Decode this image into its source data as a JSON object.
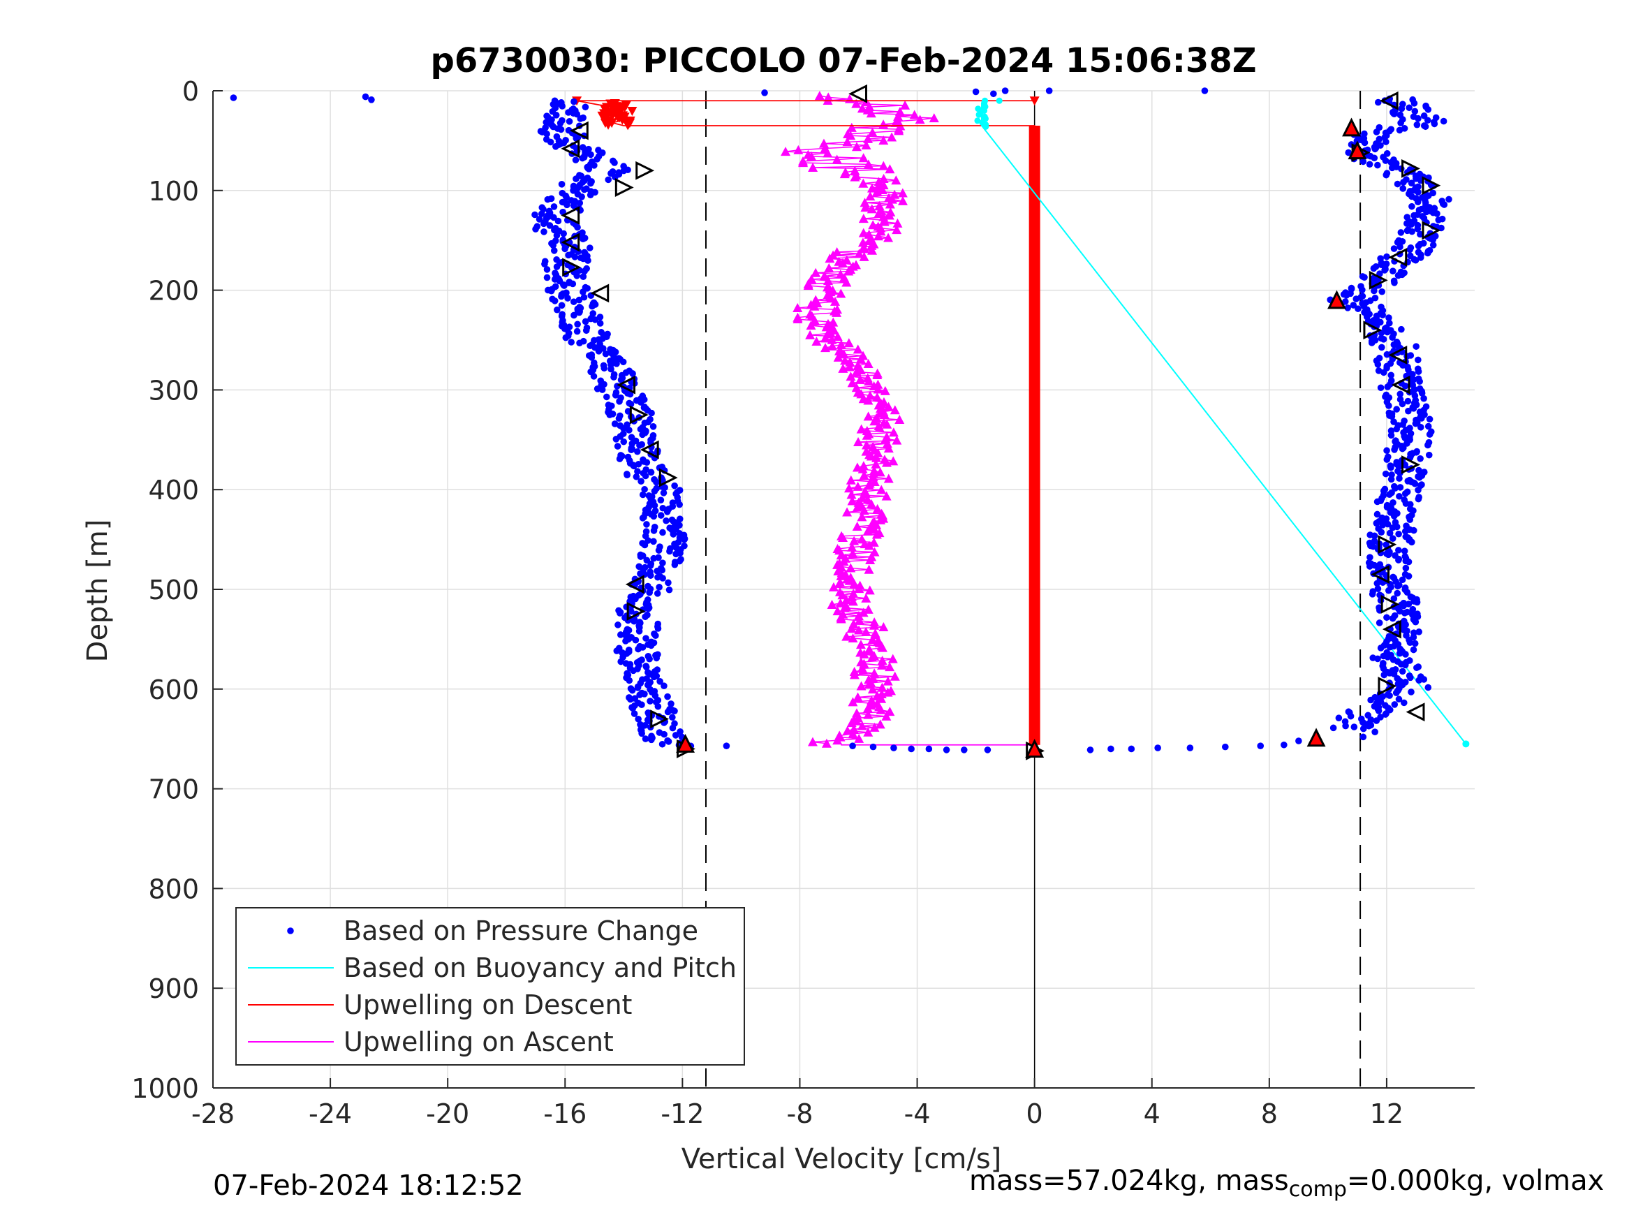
{
  "chart_data": {
    "type": "scatter",
    "title": "p6730030: PICCOLO 07-Feb-2024 15:06:38Z",
    "xlabel": "Vertical Velocity [cm/s]",
    "ylabel": "Depth [m]",
    "xlim": [
      -28,
      15
    ],
    "ylim": [
      0,
      1000
    ],
    "y_reversed": true,
    "xticks": [
      -28,
      -24,
      -20,
      -16,
      -12,
      -8,
      -4,
      0,
      4,
      8,
      12
    ],
    "yticks": [
      0,
      100,
      200,
      300,
      400,
      500,
      600,
      700,
      800,
      900,
      1000
    ],
    "grid": true,
    "legend_position": "bottom-left",
    "reference_lines_x": [
      -11.2,
      11.1
    ],
    "colors": {
      "pressure": "#0000ff",
      "buoyancy": "#00ffff",
      "descent": "#ff0000",
      "ascent": "#ff00ff",
      "axis": "#262626",
      "grid": "#dfdfdf"
    },
    "series": [
      {
        "name": "Based on Pressure Change",
        "style": "dots",
        "branches": [
          {
            "x": [
              -15.8,
              -16.2,
              -15.5,
              -14.5,
              -15.5,
              -16.5,
              -15.8,
              -16,
              -15.8,
              -15.2,
              -14.3,
              -13.7,
              -13.5,
              -13.3,
              -12.7,
              -12.6,
              -12.7,
              -13.1,
              -13.5,
              -13.6,
              -13.5,
              -13.3,
              -12.9,
              -12.7,
              -12.8,
              -12.2
            ],
            "y": [
              10,
              40,
              60,
              80,
              95,
              130,
              155,
              175,
              205,
              250,
              290,
              330,
              360,
              385,
              400,
              440,
              470,
              500,
              520,
              545,
              575,
              600,
              630,
              645,
              650,
              658
            ]
          },
          {
            "x": [
              12.3,
              12.8,
              13.3,
              11.5,
              11.2,
              12.2,
              13.2,
              13.5,
              13.4,
              12.6,
              11.7,
              10.8,
              11.6,
              12.4,
              12.4,
              12.8,
              12.7,
              12.3,
              12.1,
              12.2,
              12.5,
              12.2,
              12.8,
              11.5,
              10.6
            ],
            "y": [
              8,
              20,
              30,
              45,
              60,
              80,
              95,
              110,
              135,
              165,
              190,
              210,
              230,
              260,
              290,
              330,
              375,
              420,
              460,
              500,
              540,
              570,
              600,
              620,
              640
            ]
          }
        ],
        "scattered": {
          "x": [
            -27.3,
            -22.8,
            -22.6,
            -9.2,
            -2,
            -1.4,
            -1,
            0.5,
            5.8,
            -6.2,
            -5.5,
            -4.8,
            -4.2,
            -3.6,
            -3.0,
            -2.4,
            -1.6,
            1.9,
            2.6,
            3.3,
            4.2,
            5.3,
            6.5,
            7.7,
            8.5,
            9.0,
            11.2,
            11.6,
            10.6,
            -10.5
          ],
          "y": [
            7,
            6,
            9,
            2,
            1,
            3,
            0,
            0,
            0,
            657,
            658,
            659,
            660,
            660,
            661,
            661,
            661,
            661,
            660,
            660,
            659,
            659,
            658,
            657,
            656,
            652,
            648,
            643,
            637,
            657
          ]
        }
      },
      {
        "name": "Based on Buoyancy and Pitch",
        "style": "line",
        "x": [
          -1.8,
          -1.8,
          -1.8,
          14.7
        ],
        "y": [
          12,
          25,
          35,
          655
        ]
      },
      {
        "name": "Upwelling on Descent",
        "style": "line+markers",
        "x": [
          -15.6,
          -14.5,
          -14.2,
          -14.0,
          -14.3,
          -14.1,
          -14.4,
          -14.0,
          0,
          0,
          0,
          0,
          0
        ],
        "y": [
          10,
          16,
          22,
          25,
          28,
          30,
          32,
          35,
          35,
          100,
          300,
          500,
          656
        ]
      },
      {
        "name": "Upwelling on Ascent",
        "style": "line+markers",
        "x": [
          -6.3,
          -5.2,
          -4.5,
          -5.4,
          -7.5,
          -6.4,
          -5.0,
          -5.2,
          -5.3,
          -6.8,
          -7.2,
          -7.5,
          -6.6,
          -5.6,
          -5.3,
          -5.4,
          -5.6,
          -5.7,
          -6.0,
          -6.1,
          -6.3,
          -5.8,
          -5.5,
          -5.4,
          -5.6,
          -5.7,
          -6.0,
          -6.5,
          -7.2
        ],
        "y": [
          5,
          15,
          25,
          45,
          60,
          75,
          95,
          115,
          140,
          180,
          200,
          230,
          260,
          300,
          330,
          360,
          390,
          420,
          450,
          480,
          510,
          540,
          570,
          600,
          620,
          635,
          645,
          650,
          655
        ]
      }
    ],
    "turn_markers_black": [
      {
        "x": -6,
        "y": 3,
        "dir": "left"
      },
      {
        "x": -15.5,
        "y": 40,
        "dir": "left"
      },
      {
        "x": -15.8,
        "y": 58,
        "dir": "left"
      },
      {
        "x": -13.3,
        "y": 80,
        "dir": "right"
      },
      {
        "x": -14,
        "y": 97,
        "dir": "right"
      },
      {
        "x": -15.8,
        "y": 125,
        "dir": "left"
      },
      {
        "x": -15.8,
        "y": 152,
        "dir": "left"
      },
      {
        "x": -15.8,
        "y": 177,
        "dir": "right"
      },
      {
        "x": -14.8,
        "y": 203,
        "dir": "left"
      },
      {
        "x": -13.9,
        "y": 295,
        "dir": "left"
      },
      {
        "x": -13.5,
        "y": 325,
        "dir": "right"
      },
      {
        "x": -13.1,
        "y": 360,
        "dir": "left"
      },
      {
        "x": -12.5,
        "y": 388,
        "dir": "right"
      },
      {
        "x": -13.6,
        "y": 495,
        "dir": "left"
      },
      {
        "x": -13.6,
        "y": 522,
        "dir": "right"
      },
      {
        "x": -12.8,
        "y": 630,
        "dir": "right"
      },
      {
        "x": -11.9,
        "y": 660,
        "dir": "right"
      },
      {
        "x": 12.1,
        "y": 10,
        "dir": "left"
      },
      {
        "x": 11.1,
        "y": 62,
        "dir": "right"
      },
      {
        "x": 12.8,
        "y": 78,
        "dir": "right"
      },
      {
        "x": 13.5,
        "y": 95,
        "dir": "right"
      },
      {
        "x": 13.5,
        "y": 140,
        "dir": "right"
      },
      {
        "x": 12.4,
        "y": 167,
        "dir": "left"
      },
      {
        "x": 11.7,
        "y": 190,
        "dir": "right"
      },
      {
        "x": 11.5,
        "y": 240,
        "dir": "right"
      },
      {
        "x": 12.4,
        "y": 265,
        "dir": "left"
      },
      {
        "x": 12.5,
        "y": 295,
        "dir": "left"
      },
      {
        "x": 12.8,
        "y": 375,
        "dir": "right"
      },
      {
        "x": 12.0,
        "y": 455,
        "dir": "right"
      },
      {
        "x": 11.8,
        "y": 485,
        "dir": "left"
      },
      {
        "x": 12.1,
        "y": 515,
        "dir": "right"
      },
      {
        "x": 12.2,
        "y": 540,
        "dir": "left"
      },
      {
        "x": 12.0,
        "y": 597,
        "dir": "right"
      },
      {
        "x": 13.0,
        "y": 623,
        "dir": "left"
      },
      {
        "x": 0,
        "y": 662,
        "dir": "right"
      }
    ],
    "turn_markers_red": [
      {
        "x": -11.9,
        "y": 655
      },
      {
        "x": 0,
        "y": 660
      },
      {
        "x": 9.6,
        "y": 649
      },
      {
        "x": 10.3,
        "y": 210
      },
      {
        "x": 10.8,
        "y": 37
      },
      {
        "x": 11.0,
        "y": 60
      }
    ]
  },
  "footer": {
    "timestamp": "07-Feb-2024 18:12:52",
    "mass_text_a": "mass=57.024kg, mass",
    "mass_sub": "comp",
    "mass_text_b": "=0.000kg, volmax"
  }
}
